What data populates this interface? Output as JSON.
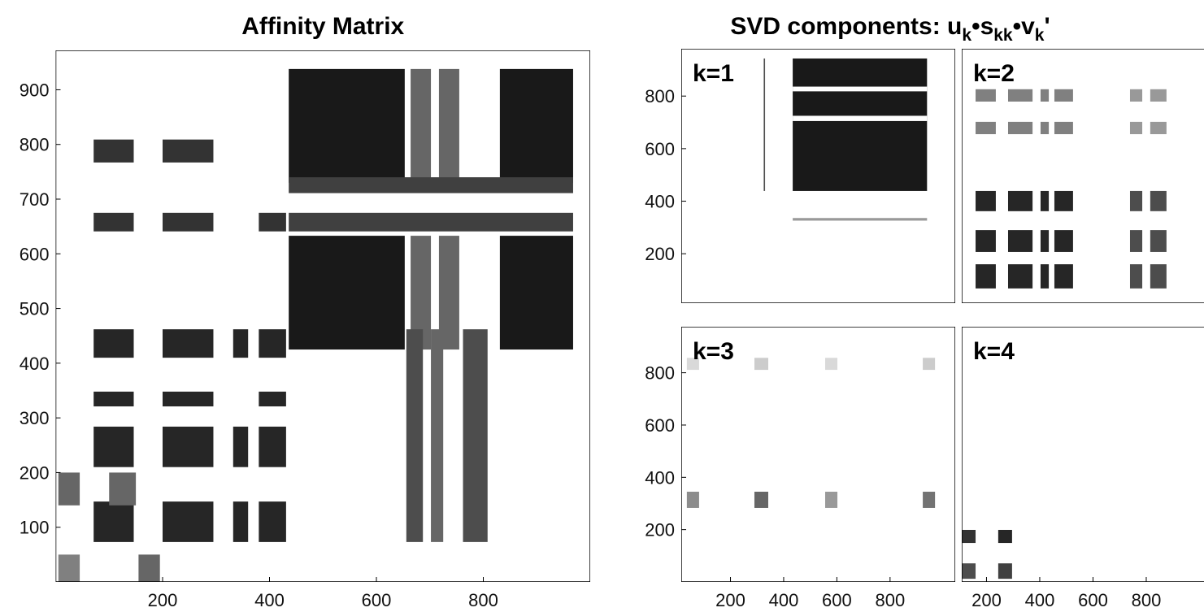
{
  "figure_title_parts": [
    "SVD components: u",
    "k",
    "•s",
    "kk",
    "•v",
    "k",
    "'"
  ],
  "chart_data": [
    {
      "type": "heatmap",
      "title": "Affinity Matrix",
      "xlim": [
        0,
        1000
      ],
      "ylim": [
        0,
        972
      ],
      "xticks": [
        200,
        400,
        600,
        800
      ],
      "yticks": [
        100,
        200,
        300,
        400,
        500,
        600,
        700,
        800,
        900
      ],
      "blocks": [
        [
          436,
          653,
          730,
          938,
          0.9
        ],
        [
          664,
          702,
          730,
          938,
          0.6
        ],
        [
          717,
          755,
          730,
          938,
          0.6
        ],
        [
          831,
          968,
          730,
          938,
          0.9
        ],
        [
          436,
          653,
          425,
          633,
          0.9
        ],
        [
          664,
          702,
          425,
          633,
          0.6
        ],
        [
          717,
          755,
          425,
          633,
          0.6
        ],
        [
          831,
          968,
          425,
          633,
          0.9
        ],
        [
          436,
          968,
          641,
          675,
          0.75
        ],
        [
          436,
          968,
          711,
          740,
          0.75
        ],
        [
          71,
          146,
          767,
          809,
          0.8
        ],
        [
          200,
          295,
          767,
          809,
          0.8
        ],
        [
          71,
          146,
          641,
          675,
          0.8
        ],
        [
          200,
          295,
          641,
          675,
          0.8
        ],
        [
          380,
          431,
          641,
          675,
          0.8
        ],
        [
          71,
          146,
          410,
          462,
          0.85
        ],
        [
          200,
          295,
          410,
          462,
          0.85
        ],
        [
          332,
          360,
          410,
          462,
          0.85
        ],
        [
          380,
          431,
          410,
          462,
          0.85
        ],
        [
          71,
          146,
          321,
          348,
          0.85
        ],
        [
          200,
          295,
          321,
          348,
          0.85
        ],
        [
          380,
          431,
          321,
          348,
          0.85
        ],
        [
          71,
          146,
          210,
          284,
          0.85
        ],
        [
          200,
          295,
          210,
          284,
          0.85
        ],
        [
          332,
          360,
          210,
          284,
          0.85
        ],
        [
          380,
          431,
          210,
          284,
          0.85
        ],
        [
          71,
          146,
          73,
          147,
          0.85
        ],
        [
          200,
          295,
          73,
          147,
          0.85
        ],
        [
          332,
          360,
          73,
          147,
          0.85
        ],
        [
          380,
          431,
          73,
          147,
          0.85
        ],
        [
          656,
          687,
          73,
          462,
          0.7
        ],
        [
          702,
          725,
          73,
          462,
          0.6
        ],
        [
          762,
          808,
          73,
          462,
          0.7
        ],
        [
          5,
          45,
          140,
          200,
          0.6
        ],
        [
          100,
          150,
          140,
          200,
          0.6
        ],
        [
          155,
          195,
          0,
          50,
          0.6
        ],
        [
          5,
          45,
          0,
          50,
          0.5
        ]
      ]
    },
    {
      "type": "heatmap",
      "label": "k=1",
      "xlim": [
        15,
        1045
      ],
      "ylim": [
        12,
        980
      ],
      "yticks": [
        200,
        400,
        600,
        800
      ],
      "blocks": [
        [
          434,
          939,
          439,
          943,
          0.9
        ],
        [
          434,
          939,
          818,
          836,
          0
        ],
        [
          434,
          939,
          705,
          725,
          0
        ],
        [
          325,
          330,
          439,
          943,
          0.7
        ],
        [
          434,
          939,
          326,
          336,
          0.4
        ]
      ]
    },
    {
      "type": "heatmap",
      "label": "k=2",
      "xlim": [
        107,
        1136
      ],
      "ylim": [
        12,
        980
      ],
      "blocks": [
        [
          159,
          235,
          779,
          826,
          0.5
        ],
        [
          281,
          373,
          779,
          826,
          0.5
        ],
        [
          403,
          434,
          779,
          826,
          0.5
        ],
        [
          455,
          525,
          779,
          826,
          0.5
        ],
        [
          739,
          785,
          779,
          826,
          0.4
        ],
        [
          815,
          876,
          779,
          826,
          0.4
        ],
        [
          159,
          235,
          655,
          702,
          0.5
        ],
        [
          281,
          373,
          655,
          702,
          0.5
        ],
        [
          403,
          434,
          655,
          702,
          0.5
        ],
        [
          455,
          525,
          655,
          702,
          0.5
        ],
        [
          739,
          785,
          655,
          702,
          0.4
        ],
        [
          815,
          876,
          655,
          702,
          0.4
        ],
        [
          159,
          235,
          362,
          439,
          0.85
        ],
        [
          281,
          373,
          362,
          439,
          0.85
        ],
        [
          403,
          434,
          362,
          439,
          0.85
        ],
        [
          455,
          525,
          362,
          439,
          0.85
        ],
        [
          739,
          785,
          362,
          439,
          0.7
        ],
        [
          815,
          876,
          362,
          439,
          0.7
        ],
        [
          159,
          235,
          207,
          290,
          0.85
        ],
        [
          281,
          373,
          207,
          290,
          0.85
        ],
        [
          403,
          434,
          207,
          290,
          0.85
        ],
        [
          455,
          525,
          207,
          290,
          0.85
        ],
        [
          739,
          785,
          207,
          290,
          0.7
        ],
        [
          815,
          876,
          207,
          290,
          0.7
        ],
        [
          159,
          235,
          68,
          160,
          0.85
        ],
        [
          281,
          373,
          68,
          160,
          0.85
        ],
        [
          403,
          434,
          68,
          160,
          0.85
        ],
        [
          455,
          525,
          68,
          160,
          0.85
        ],
        [
          739,
          785,
          68,
          160,
          0.7
        ],
        [
          815,
          876,
          68,
          160,
          0.7
        ]
      ]
    },
    {
      "type": "heatmap",
      "label": "k=3",
      "xlim": [
        15,
        1045
      ],
      "ylim": [
        0,
        976
      ],
      "xticks": [
        200,
        400,
        600,
        800
      ],
      "yticks": [
        200,
        400,
        600,
        800
      ],
      "blocks": [
        [
          36,
          82,
          283,
          345,
          0.45
        ],
        [
          290,
          342,
          283,
          345,
          0.6
        ],
        [
          556,
          602,
          283,
          345,
          0.4
        ],
        [
          923,
          969,
          283,
          345,
          0.55
        ],
        [
          36,
          82,
          811,
          857,
          0.15
        ],
        [
          290,
          342,
          811,
          857,
          0.2
        ],
        [
          556,
          602,
          811,
          857,
          0.15
        ],
        [
          923,
          969,
          811,
          857,
          0.2
        ]
      ]
    },
    {
      "type": "heatmap",
      "label": "k=4",
      "xlim": [
        107,
        1136
      ],
      "ylim": [
        0,
        976
      ],
      "xticks": [
        200,
        400,
        600,
        800
      ],
      "blocks": [
        [
          107,
          159,
          149,
          199,
          0.8
        ],
        [
          244,
          296,
          149,
          199,
          0.85
        ],
        [
          107,
          159,
          12,
          71,
          0.7
        ],
        [
          244,
          296,
          12,
          71,
          0.75
        ]
      ]
    }
  ]
}
